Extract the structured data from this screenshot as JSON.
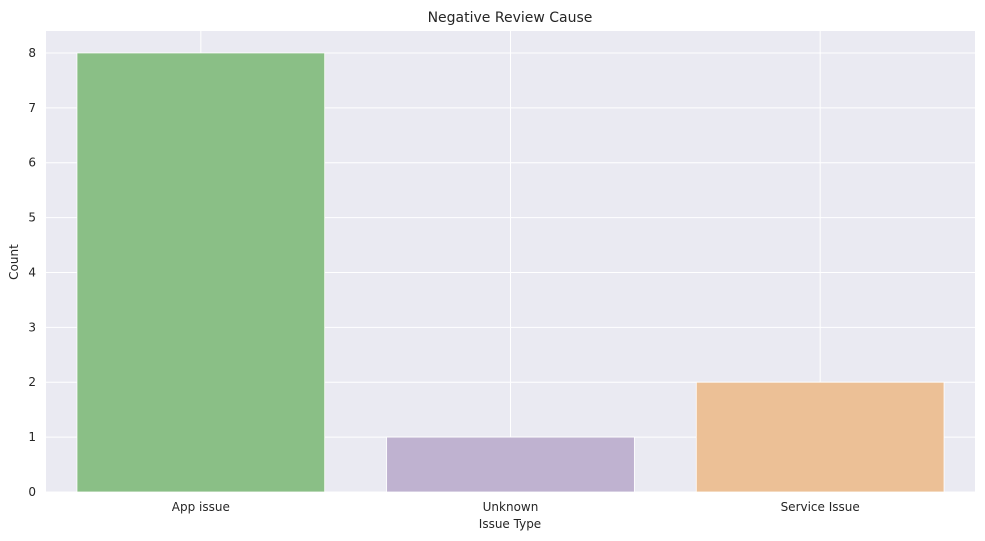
{
  "chart_data": {
    "type": "bar",
    "title": "Negative Review Cause",
    "xlabel": "Issue Type",
    "ylabel": "Count",
    "categories": [
      "App issue",
      "Unknown",
      "Service Issue"
    ],
    "values": [
      8,
      1,
      2
    ],
    "colors": [
      "#8abf86",
      "#bfb2d0",
      "#ecc096"
    ],
    "ylim": [
      0,
      8.4
    ],
    "yticks": [
      "0",
      "1",
      "2",
      "3",
      "4",
      "5",
      "6",
      "7",
      "8"
    ],
    "grid": true,
    "background": "#eaeaf2"
  }
}
